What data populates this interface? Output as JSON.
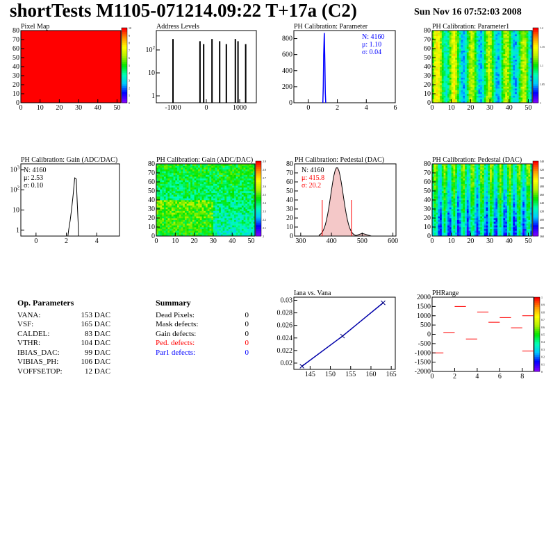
{
  "header": {
    "title": "shortTests M1105-071214.09:22 T+17a (C2)",
    "date": "Sun Nov 16 07:52:03 2008"
  },
  "op_params": {
    "heading": "Op. Parameters",
    "rows": [
      {
        "name": "VANA:",
        "value": "153 DAC"
      },
      {
        "name": "VSF:",
        "value": "165 DAC"
      },
      {
        "name": "CALDEL:",
        "value": "83 DAC"
      },
      {
        "name": "VTHR:",
        "value": "104 DAC"
      },
      {
        "name": "IBIAS_DAC:",
        "value": "99 DAC"
      },
      {
        "name": "VIBIAS_PH:",
        "value": "106 DAC"
      },
      {
        "name": "VOFFSETOP:",
        "value": "12 DAC"
      }
    ]
  },
  "summary": {
    "heading": "Summary",
    "rows": [
      {
        "name": "Dead Pixels:",
        "value": "0",
        "color": "#000000"
      },
      {
        "name": "Mask defects:",
        "value": "0",
        "color": "#000000"
      },
      {
        "name": "Gain defects:",
        "value": "0",
        "color": "#000000"
      },
      {
        "name": "Ped. defects:",
        "value": "0",
        "color": "#ff0000"
      },
      {
        "name": "Par1 defects:",
        "value": "0",
        "color": "#0000ff"
      }
    ]
  },
  "chart_data": [
    {
      "id": "pixel-map",
      "type": "heatmap",
      "title": "Pixel Map",
      "xticks": [
        "0",
        "10",
        "20",
        "30",
        "40",
        "50"
      ],
      "yticks": [
        "0",
        "10",
        "20",
        "30",
        "40",
        "50",
        "60",
        "70",
        "80"
      ],
      "xlim": [
        0,
        52
      ],
      "ylim": [
        0,
        80
      ],
      "fill": "#ff0000",
      "zticks": [
        "0",
        "1",
        "2",
        "3",
        "4",
        "5",
        "6",
        "7",
        "8",
        "9",
        "10"
      ]
    },
    {
      "id": "address-levels",
      "type": "bar",
      "title": "Address Levels",
      "yscale": "log",
      "xticks": [
        "-1000",
        "0",
        "1000"
      ],
      "yticks": [
        "1",
        "10",
        "10^2"
      ],
      "xlim": [
        -1500,
        1500
      ],
      "ylim": [
        0.5,
        700
      ],
      "peaks": [
        -1000,
        -190,
        -80,
        170,
        400,
        600,
        870,
        950,
        1180
      ]
    },
    {
      "id": "ph-param",
      "type": "bar",
      "title": "PH Calibration: Parameter",
      "xticks": [
        "0",
        "2",
        "4",
        "6"
      ],
      "yticks": [
        "0",
        "200",
        "400",
        "600",
        "800"
      ],
      "xlim": [
        -1,
        6
      ],
      "ylim": [
        0,
        900
      ],
      "stats": [
        "N: 4160",
        "μ: 1.10",
        "σ: 0.04"
      ],
      "stats_color": "#0000ff",
      "peak_x": 1.1,
      "peak_y": 870
    },
    {
      "id": "ph-param1",
      "type": "heatmap",
      "title": "PH Calibration: Parameter1",
      "xticks": [
        "0",
        "10",
        "20",
        "30",
        "40",
        "50"
      ],
      "yticks": [
        "0",
        "10",
        "20",
        "30",
        "40",
        "50",
        "60",
        "70",
        "80"
      ],
      "zticks": [
        "1",
        "1.05",
        "1.1",
        "1.15",
        "1.2"
      ]
    },
    {
      "id": "gain-hist",
      "type": "bar",
      "title": "PH Calibration: Gain (ADC/DAC)",
      "yscale": "log",
      "xticks": [
        "0",
        "2",
        "4"
      ],
      "yticks": [
        "1",
        "10",
        "10^2",
        "10^3"
      ],
      "xlim": [
        -1,
        5.5
      ],
      "ylim": [
        0.5,
        2000
      ],
      "stats": [
        "N: 4160",
        "μ: 2.53",
        "σ: 0.10"
      ],
      "stats_color": "#000000"
    },
    {
      "id": "gain-map",
      "type": "heatmap",
      "title": "PH Calibration: Gain (ADC/DAC)",
      "xticks": [
        "0",
        "10",
        "20",
        "30",
        "40",
        "50"
      ],
      "yticks": [
        "0",
        "10",
        "20",
        "30",
        "40",
        "50",
        "60",
        "70",
        "80"
      ],
      "zticks": [
        "2",
        "2.1",
        "2.2",
        "2.3",
        "2.4",
        "2.5",
        "2.6",
        "2.7",
        "2.8",
        "2.9"
      ]
    },
    {
      "id": "pedestal-hist",
      "type": "bar",
      "title": "PH Calibration: Pedestal (DAC)",
      "xticks": [
        "300",
        "400",
        "500",
        "600"
      ],
      "yticks": [
        "0",
        "10",
        "20",
        "30",
        "40",
        "50",
        "60",
        "70",
        "80"
      ],
      "xlim": [
        280,
        610
      ],
      "ylim": [
        0,
        80
      ],
      "stats": [
        "N: 4160",
        "μ: 415.8",
        "σ: 20.2"
      ],
      "stats_colors": [
        "#000000",
        "#ff0000",
        "#ff0000"
      ],
      "cut_lines": [
        370,
        465
      ]
    },
    {
      "id": "pedestal-map",
      "type": "heatmap",
      "title": "PH Calibration: Pedestal (DAC)",
      "xticks": [
        "0",
        "10",
        "20",
        "30",
        "40",
        "50"
      ],
      "yticks": [
        "0",
        "10",
        "20",
        "30",
        "40",
        "50",
        "60",
        "70",
        "80"
      ],
      "zticks": [
        "360",
        "380",
        "400",
        "420",
        "440",
        "460",
        "480",
        "500",
        "520",
        "540"
      ]
    },
    {
      "id": "iana-vana",
      "type": "line",
      "title": "Iana vs. Vana",
      "xticks": [
        "145",
        "150",
        "155",
        "160",
        "165"
      ],
      "yticks": [
        "0.02",
        "0.022",
        "0.024",
        "0.026",
        "0.028",
        "0.03"
      ],
      "xlim": [
        141,
        166
      ],
      "ylim": [
        0.019,
        0.0305
      ],
      "x": [
        143,
        153,
        163
      ],
      "y": [
        0.0195,
        0.0243,
        0.0296
      ]
    },
    {
      "id": "phrange",
      "type": "scatter",
      "title": "PHRange",
      "xticks": [
        "0",
        "2",
        "4",
        "6",
        "8"
      ],
      "yticks": [
        "-2000",
        "-1500",
        "-1000",
        "-500",
        "0",
        "500",
        "1000",
        "1500",
        "2000"
      ],
      "xlim": [
        0,
        9
      ],
      "ylim": [
        -2000,
        2000
      ],
      "values": [
        -1000,
        100,
        1500,
        -250,
        1200,
        650,
        900,
        350,
        1000,
        -900
      ],
      "zticks": [
        "0",
        "0.1",
        "0.2",
        "0.3",
        "0.4",
        "0.5",
        "0.6",
        "0.7",
        "0.8",
        "0.9",
        "1"
      ]
    }
  ]
}
